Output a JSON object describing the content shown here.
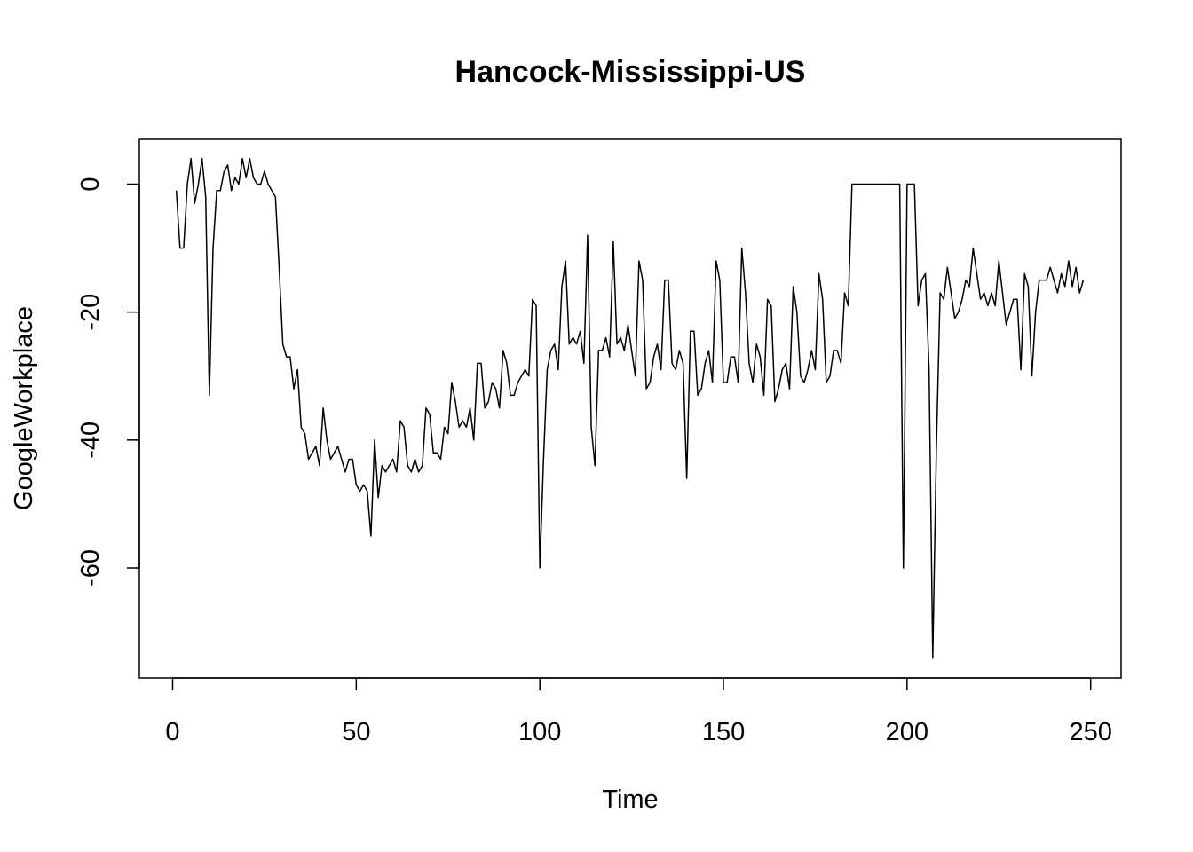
{
  "chart_data": {
    "type": "line",
    "title": "Hancock-Mississippi-US",
    "xlabel": "Time",
    "ylabel": "GoogleWorkplace",
    "xlim": [
      0,
      250
    ],
    "ylim": [
      -74,
      4
    ],
    "x_ticks": [
      0,
      50,
      100,
      150,
      200,
      250
    ],
    "y_ticks": [
      0,
      -20,
      -40,
      -60
    ],
    "x_tick_labels": [
      "0",
      "50",
      "100",
      "150",
      "200",
      "250"
    ],
    "y_tick_labels": [
      "0",
      "-20",
      "-40",
      "-60"
    ],
    "grid": false,
    "legend": "none",
    "line_color": "#000000",
    "series": [
      {
        "x_start": 1,
        "values": [
          -1,
          -10,
          -10,
          0,
          4,
          -3,
          0,
          4,
          -2,
          -33,
          -10,
          -1,
          -1,
          2,
          3,
          -1,
          1,
          0,
          4,
          1,
          4,
          1,
          0,
          0,
          2,
          0,
          -1,
          -2,
          -13,
          -25,
          -27,
          -27,
          -32,
          -29,
          -38,
          -39,
          -43,
          -42,
          -41,
          -44,
          -35,
          -40,
          -43,
          -42,
          -41,
          -43,
          -45,
          -43,
          -43,
          -47,
          -48,
          -47,
          -48,
          -55,
          -40,
          -49,
          -44,
          -45,
          -44,
          -43,
          -45,
          -37,
          -38,
          -44,
          -45,
          -43,
          -45,
          -44,
          -35,
          -36,
          -42,
          -42,
          -43,
          -38,
          -39,
          -31,
          -34,
          -38,
          -37,
          -38,
          -35,
          -40,
          -28,
          -28,
          -35,
          -34,
          -31,
          -32,
          -35,
          -26,
          -28,
          -33,
          -33,
          -31,
          -30,
          -29,
          -30,
          -18,
          -19,
          -60,
          -43,
          -29,
          -26,
          -25,
          -29,
          -16,
          -12,
          -25,
          -24,
          -25,
          -23,
          -28,
          -8,
          -38,
          -44,
          -26,
          -26,
          -24,
          -27,
          -9,
          -25,
          -24,
          -26,
          -22,
          -26,
          -30,
          -12,
          -15,
          -32,
          -31,
          -27,
          -25,
          -29,
          -15,
          -15,
          -28,
          -29,
          -26,
          -28,
          -46,
          -23,
          -23,
          -33,
          -32,
          -28,
          -26,
          -31,
          -12,
          -15,
          -31,
          -31,
          -27,
          -27,
          -31,
          -10,
          -17,
          -28,
          -31,
          -25,
          -27,
          -33,
          -18,
          -19,
          -34,
          -32,
          -29,
          -28,
          -32,
          -16,
          -20,
          -30,
          -31,
          -29,
          -26,
          -29,
          -14,
          -18,
          -31,
          -30,
          -26,
          -26,
          -28,
          -17,
          -19,
          0,
          0,
          0,
          0,
          0,
          0,
          0,
          0,
          0,
          0,
          0,
          0,
          0,
          0,
          -60,
          0,
          0,
          0,
          -19,
          -15,
          -14,
          -29,
          -74,
          -41,
          -17,
          -18,
          -13,
          -17,
          -21,
          -20,
          -18,
          -15,
          -16,
          -10,
          -14,
          -18,
          -17,
          -19,
          -17,
          -19,
          -12,
          -17,
          -22,
          -20,
          -18,
          -18,
          -29,
          -14,
          -16,
          -30,
          -20,
          -15,
          -15,
          -15,
          -13,
          -15,
          -17,
          -14,
          -16,
          -12,
          -16,
          -13,
          -17,
          -15
        ]
      }
    ]
  }
}
